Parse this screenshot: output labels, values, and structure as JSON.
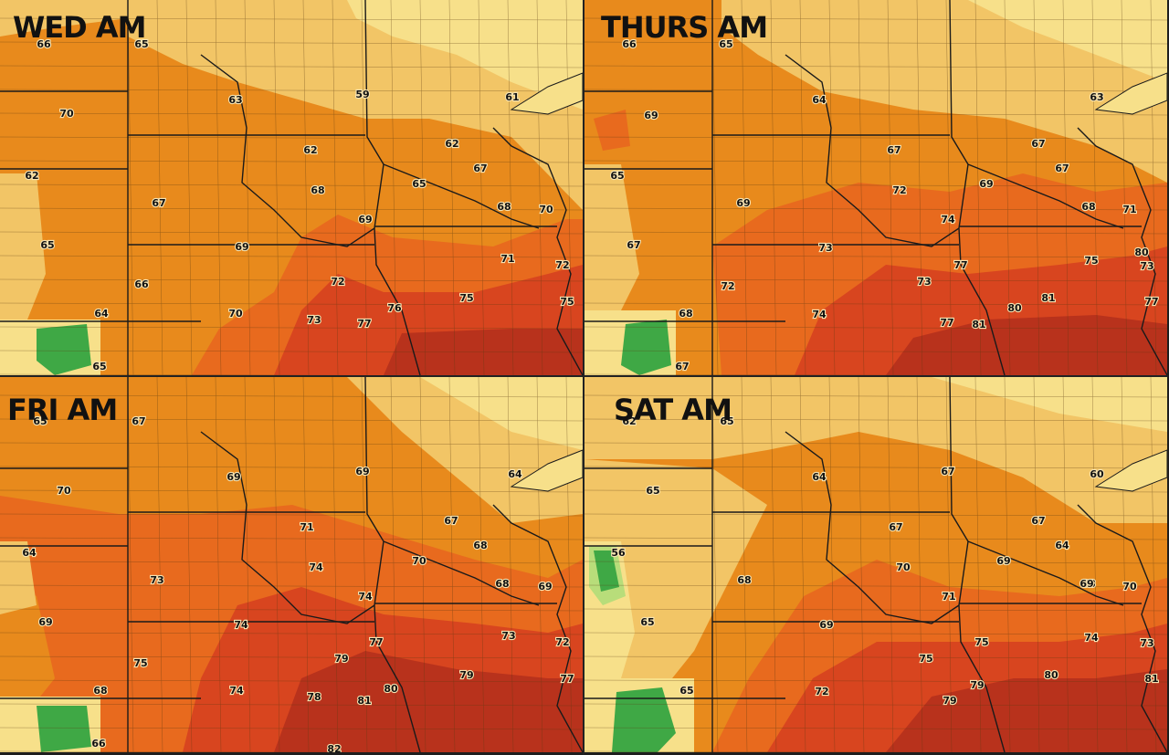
{
  "panels": [
    {
      "title": "WED AM",
      "labels": [
        "66",
        "65",
        "70",
        "62",
        "67",
        "65",
        "63",
        "62",
        "68",
        "69",
        "66",
        "59",
        "61",
        "62",
        "67",
        "65",
        "68",
        "70",
        "69",
        "72",
        "71",
        "72",
        "75",
        "73",
        "77",
        "76",
        "75",
        "64",
        "65",
        "70"
      ]
    },
    {
      "title": "THURS AM",
      "labels": [
        "66",
        "65",
        "69",
        "65",
        "69",
        "67",
        "72",
        "73",
        "74",
        "68",
        "67",
        "64",
        "63",
        "67",
        "67",
        "68",
        "69",
        "71",
        "72",
        "74",
        "77",
        "73",
        "75",
        "73",
        "77",
        "81",
        "80",
        "81",
        "77",
        "67",
        "80"
      ]
    },
    {
      "title": "FRI AM",
      "labels": [
        "65",
        "67",
        "70",
        "69",
        "64",
        "73",
        "71",
        "74",
        "69",
        "70",
        "67",
        "68",
        "64",
        "68",
        "69",
        "74",
        "74",
        "69",
        "75",
        "73",
        "77",
        "72",
        "79",
        "79",
        "80",
        "77",
        "74",
        "68",
        "78",
        "81",
        "82",
        "66"
      ]
    },
    {
      "title": "SAT AM",
      "labels": [
        "62",
        "65",
        "65",
        "64",
        "67",
        "56",
        "67",
        "68",
        "67",
        "69",
        "68",
        "65",
        "70",
        "71",
        "69",
        "70",
        "69",
        "72",
        "74",
        "75",
        "75",
        "73",
        "79",
        "80",
        "81",
        "65",
        "79",
        "64",
        "60"
      ]
    }
  ],
  "colors": {
    "light_yellow": "#f7e08a",
    "tan": "#f2c566",
    "light_orange": "#f0a23a",
    "orange": "#e88a1c",
    "dark_orange": "#e86a1e",
    "red": "#d8451f",
    "dark_red": "#b8321c",
    "green": "#3fa845",
    "light_green": "#b8dd7a"
  }
}
